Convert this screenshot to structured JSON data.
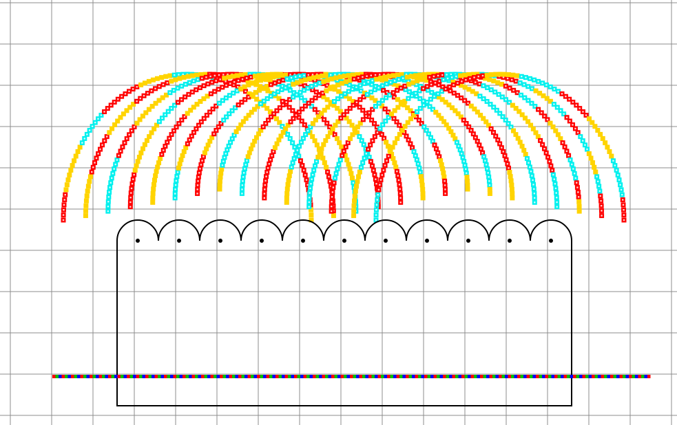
{
  "diagram": {
    "kind": "magnetic-field-lines-around-coil",
    "background_color": "#ffffff",
    "grid_color": "#8c8c8c",
    "grid": true,
    "coil": {
      "turns": 11,
      "wire_color": "#000000",
      "dot_color": "#000000"
    },
    "field_lines": {
      "count": 15,
      "palette": [
        "#ff0000",
        "#ffd400",
        "#00f0ee"
      ],
      "marker": "square-dot"
    },
    "ground_line": {
      "palette": [
        "#ff0000",
        "#00c000",
        "#0000ff"
      ]
    }
  }
}
